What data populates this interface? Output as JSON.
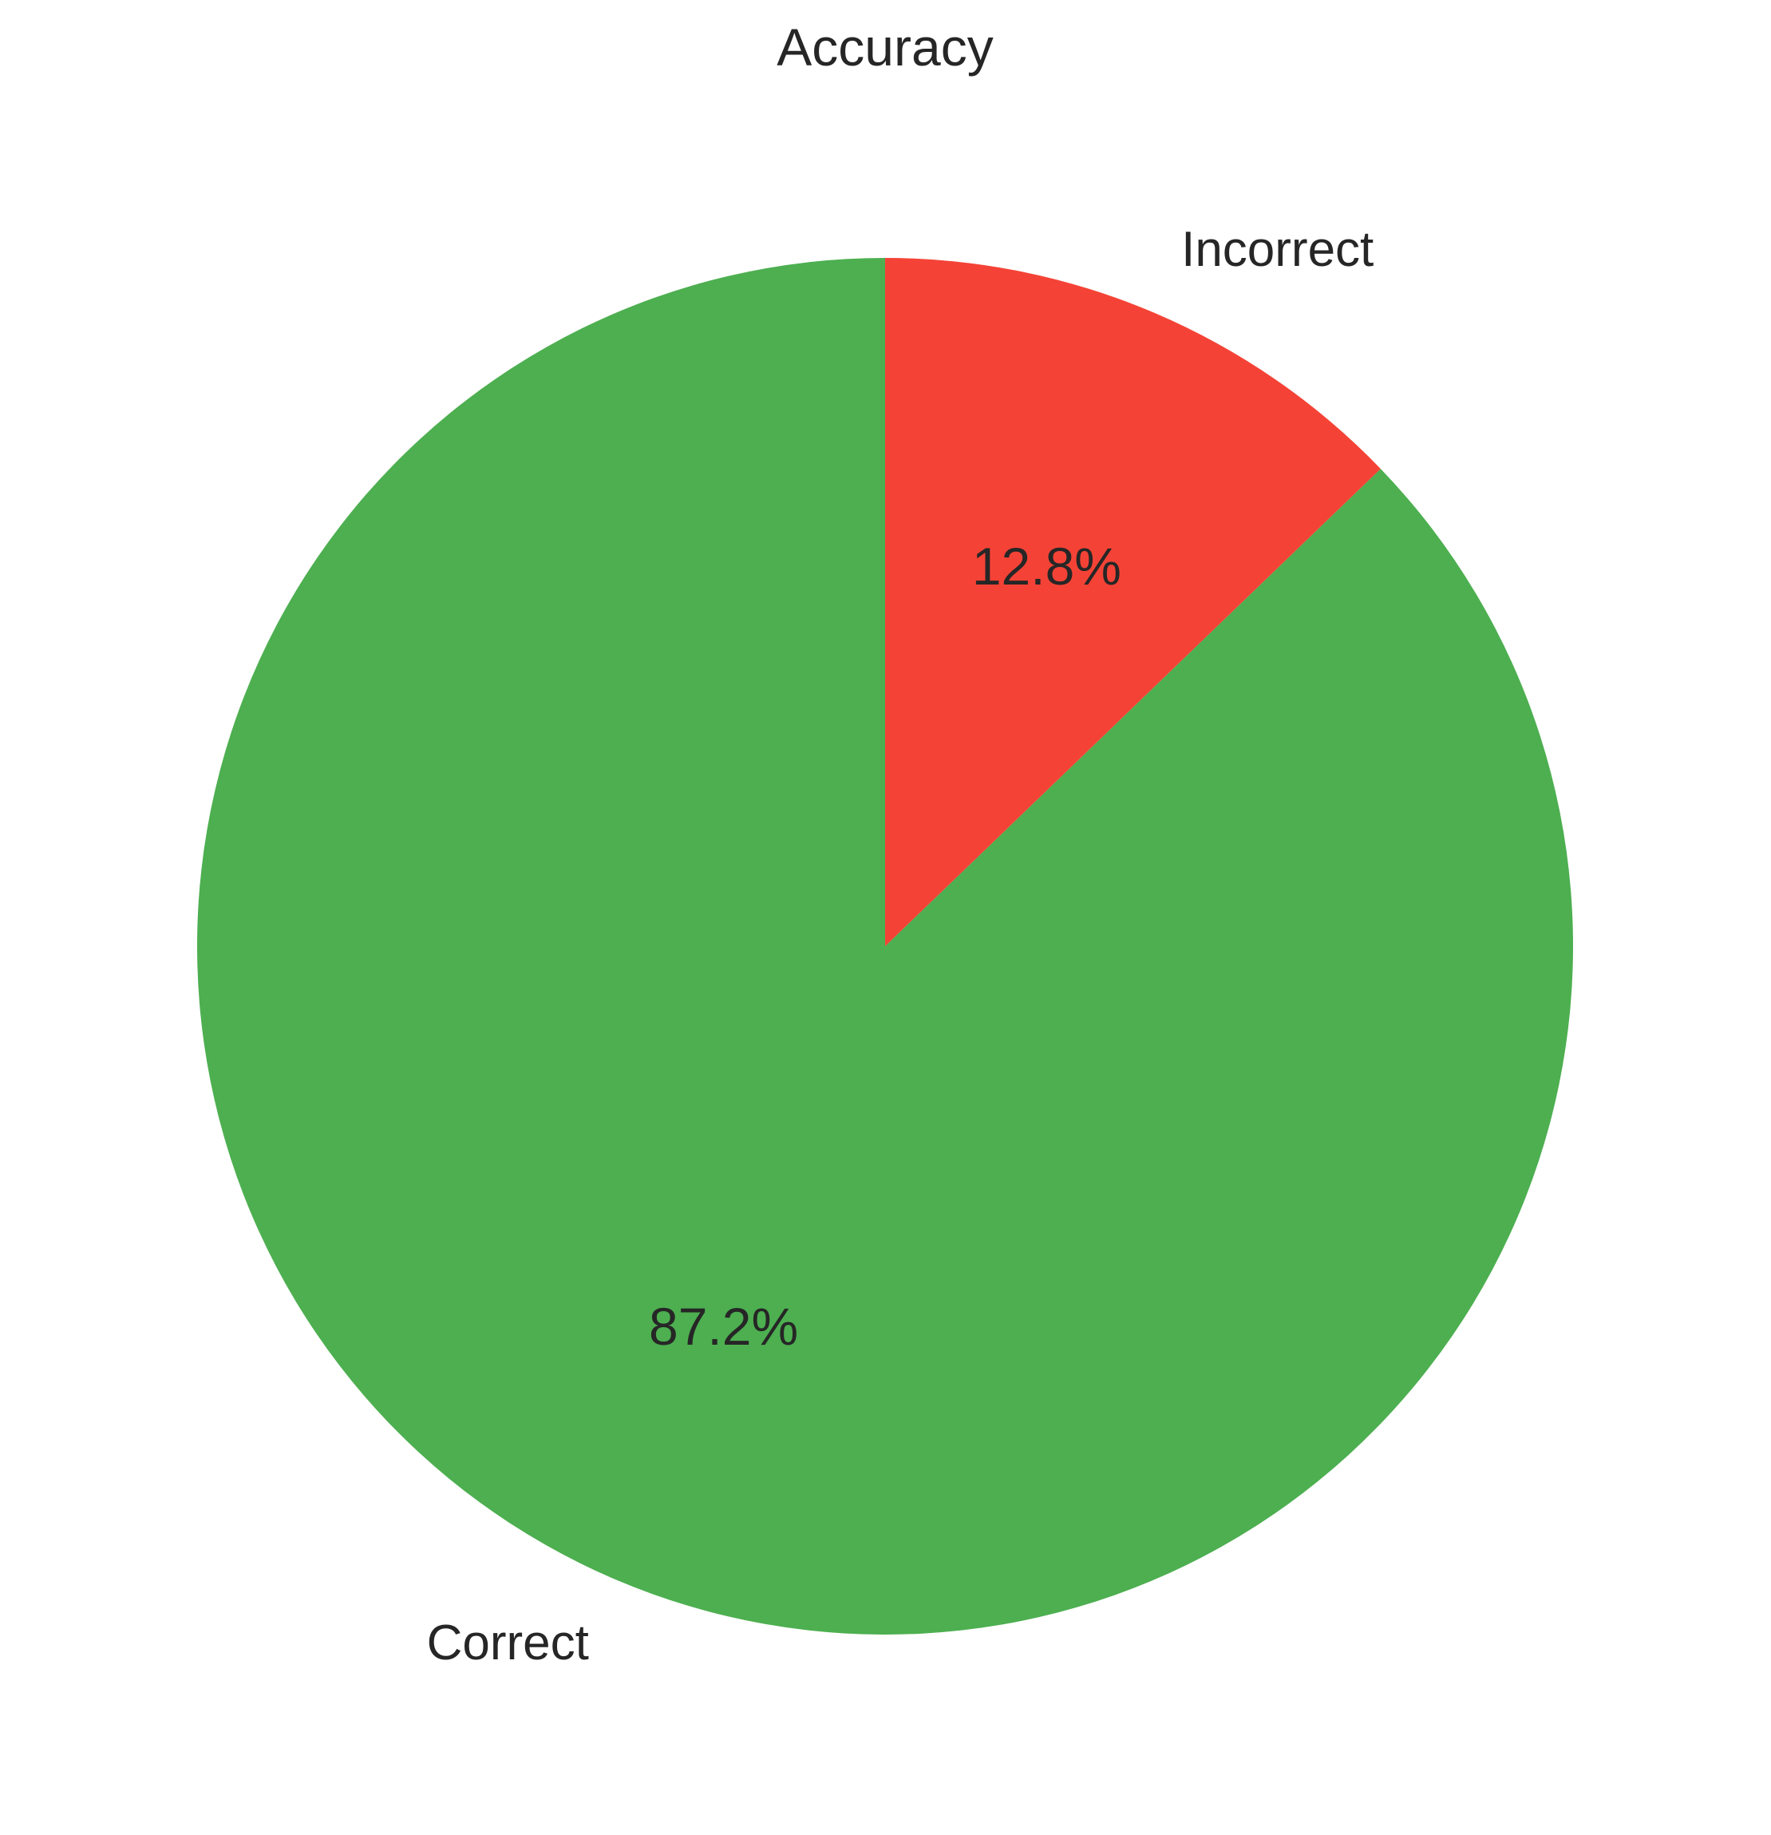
{
  "chart_data": {
    "type": "pie",
    "title": "Accuracy",
    "slices": [
      {
        "label": "Correct",
        "value": 87.2,
        "pct_label": "87.2%",
        "color": "#4daf50"
      },
      {
        "label": "Incorrect",
        "value": 12.8,
        "pct_label": "12.8%",
        "color": "#f44336"
      }
    ],
    "start_angle_deg": 90,
    "direction": "counterclockwise",
    "legend": "none"
  }
}
